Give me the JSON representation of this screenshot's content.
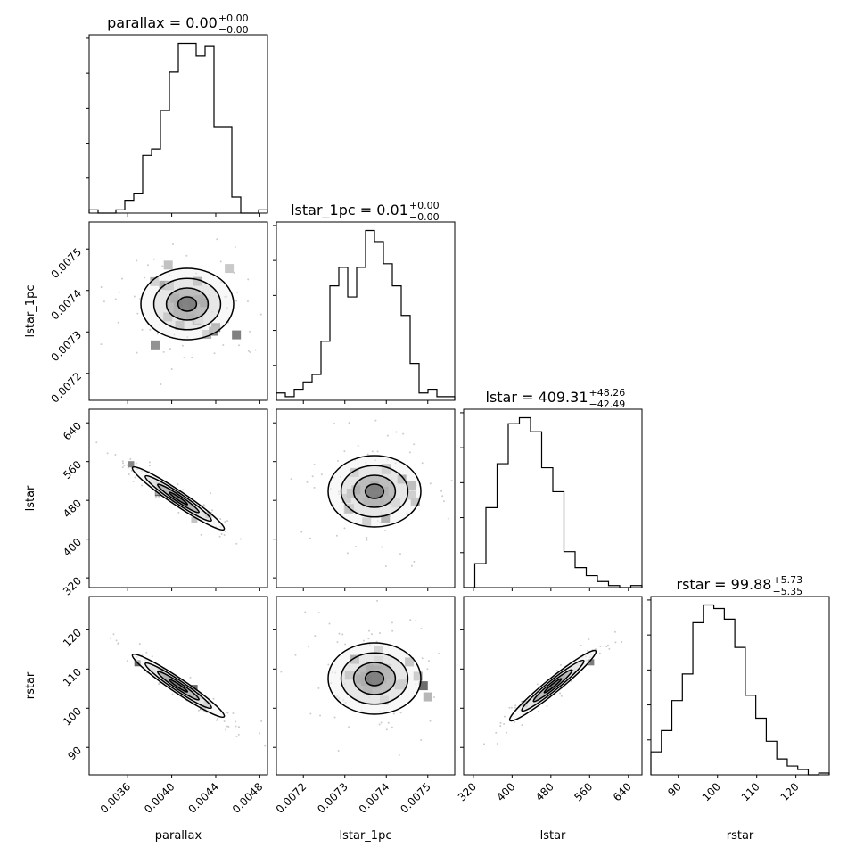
{
  "chart_data": {
    "type": "corner",
    "parameters": [
      {
        "name": "parallax",
        "xlabel": "parallax",
        "ylabel": "",
        "title": {
          "main": "parallax = 0.00",
          "sup": "+0.00",
          "sub": "−0.00"
        },
        "range": [
          0.00325,
          0.00487
        ],
        "ticks": [
          0.0036,
          0.004,
          0.0044,
          0.0048
        ],
        "tick_labels": [
          "0.0036",
          "0.0040",
          "0.0044",
          "0.0048"
        ],
        "hist": [
          1,
          0,
          0,
          1,
          4,
          6,
          18,
          20,
          32,
          44,
          53,
          53,
          49,
          52,
          27,
          27,
          5,
          0,
          0,
          1
        ]
      },
      {
        "name": "lstar_1pc",
        "xlabel": "lstar_1pc",
        "ylabel": "lstar_1pc",
        "title": {
          "main": "lstar_1pc = 0.01",
          "sup": "+0.00",
          "sub": "−0.00"
        },
        "range": [
          0.007135,
          0.007565
        ],
        "ticks": [
          0.0072,
          0.0073,
          0.0074,
          0.0075
        ],
        "tick_labels": [
          "0.0072",
          "0.0073",
          "0.0074",
          "0.0075"
        ],
        "hist": [
          2,
          1,
          3,
          5,
          7,
          16,
          31,
          36,
          28,
          36,
          46,
          43,
          37,
          31,
          23,
          10,
          2,
          3,
          1,
          1
        ]
      },
      {
        "name": "lstar",
        "xlabel": "lstar",
        "ylabel": "lstar",
        "title": {
          "main": "lstar = 409.31",
          "sup": "+48.26",
          "sub": "−42.49"
        },
        "range": [
          300,
          668
        ],
        "ticks": [
          320,
          400,
          480,
          560,
          640
        ],
        "tick_labels": [
          "320",
          "400",
          "480",
          "560",
          "640"
        ],
        "hist": [
          0,
          12,
          40,
          62,
          82,
          85,
          78,
          60,
          48,
          18,
          10,
          6,
          3,
          1,
          0,
          1
        ]
      },
      {
        "name": "rstar",
        "xlabel": "rstar",
        "ylabel": "rstar",
        "title": {
          "main": "rstar = 99.88",
          "sup": "+5.73",
          "sub": "−5.35"
        },
        "range": [
          83.0,
          128.5
        ],
        "ticks": [
          90,
          100,
          110,
          120
        ],
        "tick_labels": [
          "90",
          "100",
          "110",
          "120"
        ],
        "hist": [
          13,
          25,
          42,
          57,
          86,
          96,
          94,
          88,
          72,
          45,
          32,
          19,
          9,
          5,
          3,
          0,
          1
        ]
      }
    ],
    "contour_panels": [
      {
        "pair": [
          "parallax",
          "lstar_1pc"
        ],
        "kind": "blob"
      },
      {
        "pair": [
          "parallax",
          "lstar"
        ],
        "kind": "negative_correlation"
      },
      {
        "pair": [
          "lstar_1pc",
          "lstar"
        ],
        "kind": "blob"
      },
      {
        "pair": [
          "parallax",
          "rstar"
        ],
        "kind": "negative_correlation"
      },
      {
        "pair": [
          "lstar_1pc",
          "rstar"
        ],
        "kind": "blob"
      },
      {
        "pair": [
          "lstar",
          "rstar"
        ],
        "kind": "positive_correlation"
      }
    ],
    "grid": false,
    "legend": "none"
  }
}
